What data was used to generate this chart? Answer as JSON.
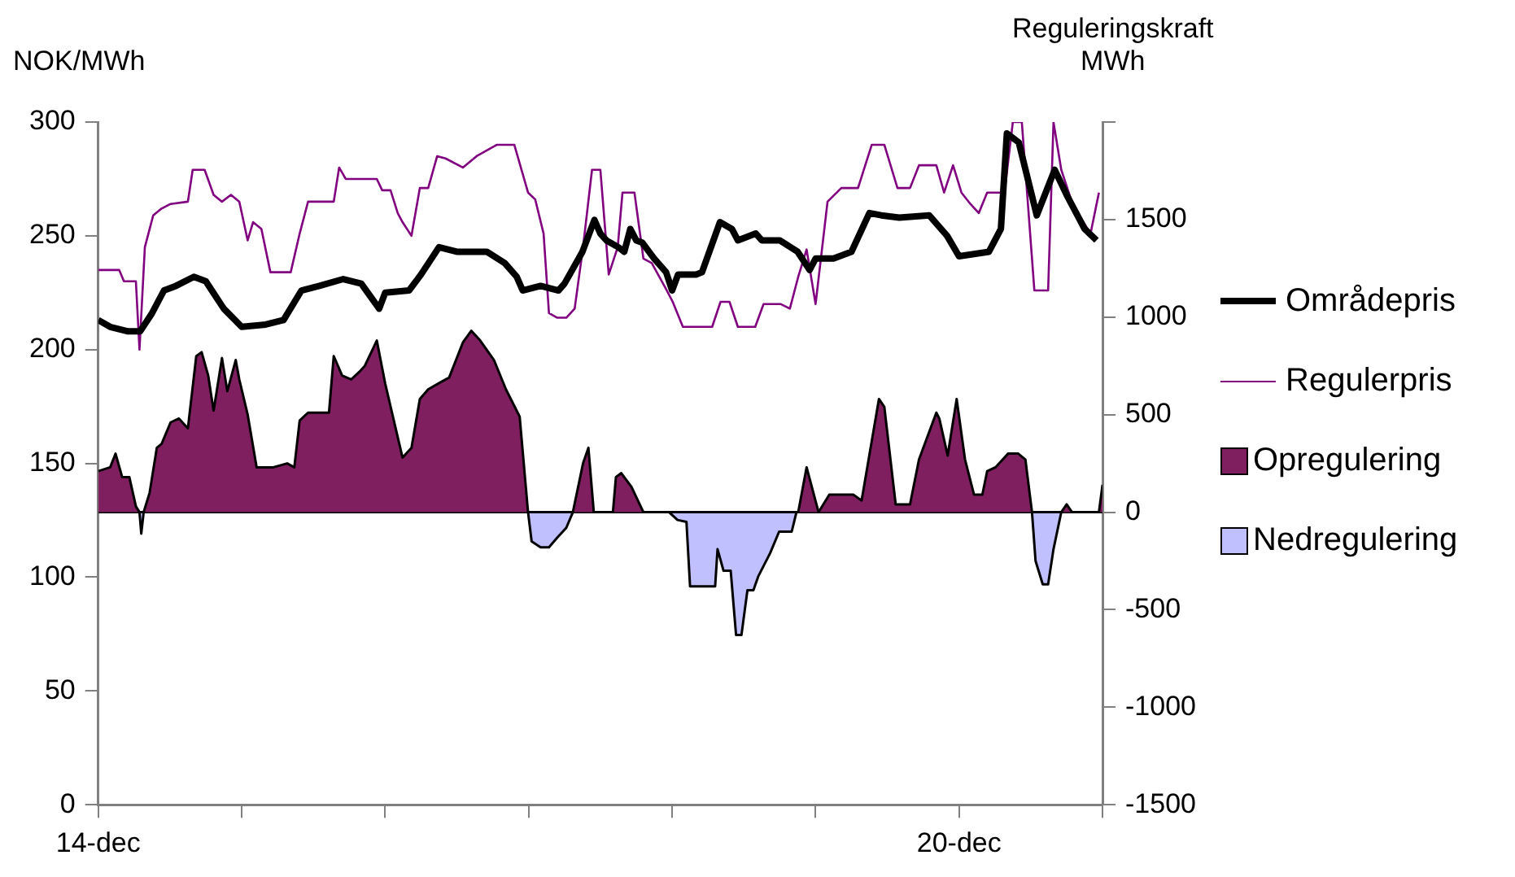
{
  "chart_data": {
    "type": "line",
    "ylabel": "NOK/MWh",
    "y2label": "Reguleringskraft\nMWh",
    "xlim": [
      "--12-14",
      "--12-21"
    ],
    "xticks": [
      {
        "value": "--12-14",
        "label": "14-dec"
      },
      {
        "value": "--12-15",
        "label": null
      },
      {
        "value": "--12-16",
        "label": null
      },
      {
        "value": "--12-17",
        "label": null
      },
      {
        "value": "--12-18",
        "label": null
      },
      {
        "value": "--12-19",
        "label": null
      },
      {
        "value": "--12-20",
        "label": "20-dec"
      },
      {
        "value": "--12-21",
        "label": null
      }
    ],
    "ylim": [
      0,
      300
    ],
    "yticks": [
      0,
      50,
      100,
      150,
      200,
      250,
      300
    ],
    "y2lim": [
      -1500,
      2000
    ],
    "y2ticks": [
      -1500,
      -1000,
      -500,
      0,
      500,
      1000,
      1500,
      {
        "value": 2000,
        "label": null
      }
    ],
    "legend": "right",
    "marker": "none",
    "line_style": "solid",
    "series": [
      {
        "name": "Områdepris",
        "type": "line",
        "axis": "y",
        "color": "#000000",
        "x": [
          "--12-14T00:00",
          "--12-14T02:00",
          "--12-14T05:00",
          "--12-14T07:00",
          "--12-14T09:00",
          "--12-14T11:00",
          "--12-14T13:00",
          "--12-14T16:00",
          "--12-14T18:00",
          "--12-14T21:00",
          "--12-15T00:00",
          "--12-15T04:00",
          "--12-15T07:00",
          "--12-15T10:00",
          "--12-15T13:00",
          "--12-15T17:00",
          "--12-15T20:00",
          "--12-15T23:00",
          "--12-16T00:00",
          "--12-16T04:00",
          "--12-16T06:00",
          "--12-16T09:00",
          "--12-16T12:00",
          "--12-16T14:00",
          "--12-16T17:00",
          "--12-16T20:00",
          "--12-16T22:00",
          "--12-16T23:00",
          "--12-17T02:00",
          "--12-17T05:00",
          "--12-17T06:00",
          "--12-17T09:00",
          "--12-17T11:00",
          "--12-17T12:00",
          "--12-17T13:00",
          "--12-17T15:00",
          "--12-17T16:00",
          "--12-17T17:00",
          "--12-17T18:00",
          "--12-17T19:00",
          "--12-17T21:00",
          "--12-17T23:00",
          "--12-18T00:00",
          "--12-18T01:00",
          "--12-18T04:00",
          "--12-18T05:00",
          "--12-18T08:00",
          "--12-18T10:00",
          "--12-18T11:00",
          "--12-18T14:00",
          "--12-18T15:00",
          "--12-18T18:00",
          "--12-18T21:00",
          "--12-18T23:00",
          "--12-19T00:00",
          "--12-19T03:00",
          "--12-19T06:00",
          "--12-19T09:00",
          "--12-19T11:00",
          "--12-19T14:00",
          "--12-19T19:00",
          "--12-19T22:00",
          "--12-20T00:00",
          "--12-20T05:00",
          "--12-20T07:00",
          "--12-20T08:00",
          "--12-20T10:00",
          "--12-20T13:00",
          "--12-20T16:00",
          "--12-20T18:00",
          "--12-20T21:00",
          "--12-20T23:00"
        ],
        "values": [
          213,
          210,
          208,
          208,
          216,
          226,
          228,
          232,
          230,
          218,
          210,
          211,
          213,
          226,
          228,
          231,
          229,
          218,
          225,
          226,
          233,
          245,
          243,
          243,
          243,
          238,
          232,
          226,
          228,
          226,
          229,
          243,
          257,
          251,
          248,
          245,
          243,
          253,
          248,
          247,
          240,
          234,
          226,
          233,
          233,
          234,
          256,
          253,
          248,
          251,
          248,
          248,
          243,
          235,
          240,
          240,
          243,
          260,
          259,
          258,
          259,
          250,
          241,
          243,
          253,
          295,
          291,
          259,
          279,
          268,
          253,
          248
        ]
      },
      {
        "name": "Regulerpris",
        "type": "line",
        "axis": "y",
        "color": "#800080",
        "x": [
          "--12-14T00:00",
          "--12-14T03:30",
          "--12-14T04:18",
          "--12-14T06:18",
          "--12-14T06:54",
          "--12-14T07:48",
          "--12-14T09:12",
          "--12-14T10:36",
          "--12-14T12:06",
          "--12-14T15:00",
          "--12-14T15:48",
          "--12-14T17:48",
          "--12-14T19:18",
          "--12-14T20:42",
          "--12-14T22:12",
          "--12-14T23:36",
          "--12-15T01:00",
          "--12-15T01:54",
          "--12-15T03:18",
          "--12-15T04:48",
          "--12-15T08:12",
          "--12-15T09:42",
          "--12-15T11:06",
          "--12-15T15:24",
          "--12-15T16:18",
          "--12-15T17:24",
          "--12-15T22:36",
          "--12-15T23:30",
          "--12-16T00:54",
          "--12-16T02:06",
          "--12-16T02:54",
          "--12-16T04:24",
          "--12-16T05:48",
          "--12-16T07:12",
          "--12-16T08:42",
          "--12-16T10:06",
          "--12-16T13:00",
          "--12-16T15:18",
          "--12-16T18:42",
          "--12-16T21:36",
          "--12-16T23:54",
          "--12-17T01:06",
          "--12-17T02:30",
          "--12-17T03:24",
          "--12-17T04:48",
          "--12-17T06:18",
          "--12-17T07:42",
          "--12-17T09:06",
          "--12-17T10:36",
          "--12-17T12:00",
          "--12-17T13:24",
          "--12-17T14:54",
          "--12-17T15:42",
          "--12-17T17:42",
          "--12-17T19:12",
          "--12-17T20:36",
          "--12-17T22:54",
          "--12-18T00:06",
          "--12-18T01:48",
          "--12-18T06:42",
          "--12-18T08:06",
          "--12-18T09:36",
          "--12-18T11:00",
          "--12-18T13:54",
          "--12-18T15:18",
          "--12-18T18:12",
          "--12-18T19:42",
          "--12-18T21:06",
          "--12-18T22:30",
          "--12-19T00:00",
          "--12-19T02:00",
          "--12-19T04:18",
          "--12-19T07:06",
          "--12-19T09:24",
          "--12-19T11:30",
          "--12-19T13:42",
          "--12-19T15:48",
          "--12-19T17:18",
          "--12-19T20:12",
          "--12-19T21:30",
          "--12-19T23:00",
          "--12-20T00:24",
          "--12-20T01:54",
          "--12-20T03:18",
          "--12-20T04:42",
          "--12-20T07:36",
          "--12-20T09:00",
          "--12-20T10:30",
          "--12-20T12:36",
          "--12-20T14:54",
          "--12-20T15:48",
          "--12-20T17:06",
          "--12-20T19:06",
          "--12-20T22:00",
          "--12-20T23:24"
        ],
        "values": [
          235,
          235,
          230,
          230,
          200,
          245,
          259,
          262,
          264,
          265,
          279,
          279,
          268,
          265,
          268,
          265,
          248,
          256,
          253,
          234,
          234,
          251,
          265,
          265,
          280,
          275,
          275,
          270,
          270,
          260,
          256,
          250,
          271,
          271,
          285,
          284,
          280,
          285,
          290,
          290,
          269,
          266,
          251,
          216,
          214,
          214,
          218,
          245,
          279,
          279,
          233,
          245,
          269,
          269,
          240,
          238,
          227,
          221,
          210,
          210,
          221,
          221,
          210,
          210,
          220,
          220,
          218,
          232,
          244,
          220,
          265,
          271,
          271,
          290,
          290,
          271,
          271,
          281,
          281,
          269,
          281,
          269,
          264,
          260,
          269,
          269,
          300,
          300,
          226,
          226,
          300,
          279,
          263,
          251,
          269
        ]
      },
      {
        "name": "Opregulering",
        "type": "area",
        "axis": "y2",
        "color": "#7f1f5f",
        "x": [
          "--12-14T00:00",
          "--12-14T02:00",
          "--12-14T02:54",
          "--12-14T04:00",
          "--12-14T05:12",
          "--12-14T06:18",
          "--12-14T06:54",
          "--12-14T07:36",
          "--12-14T08:36",
          "--12-14T09:48",
          "--12-14T10:36",
          "--12-14T12:06",
          "--12-14T13:30",
          "--12-14T15:00",
          "--12-14T16:24",
          "--12-14T17:18",
          "--12-14T18:24",
          "--12-14T19:18",
          "--12-14T20:42",
          "--12-14T21:36",
          "--12-14T23:00",
          "--12-14T23:36",
          "--12-15T01:00",
          "--12-15T02:30",
          "--12-15T05:18",
          "--12-15T07:36",
          "--12-15T08:48",
          "--12-15T09:42",
          "--12-15T11:06",
          "--12-15T14:36",
          "--12-15T15:24",
          "--12-15T16:48",
          "--12-15T18:18",
          "--12-15T19:42",
          "--12-15T20:36",
          "--12-15T22:36",
          "--12-16T00:00",
          "--12-16T02:54",
          "--12-16T04:24",
          "--12-16T05:48",
          "--12-16T07:12",
          "--12-16T09:30",
          "--12-16T10:42",
          "--12-16T13:00",
          "--12-16T14:24",
          "--12-16T15:54",
          "--12-16T18:12",
          "--12-16T20:12",
          "--12-16T22:30",
          "--12-16T23:54",
          "--12-17T07:24",
          "--12-17T09:06",
          "--12-17T10:00",
          "--12-17T10:54",
          "--12-17T14:06",
          "--12-17T14:36",
          "--12-17T15:30",
          "--12-17T17:12",
          "--12-17T19:12",
          "--12-18T21:06",
          "--12-18T22:30",
          "--12-19T00:30",
          "--12-19T02:18",
          "--12-19T06:18",
          "--12-19T07:42",
          "--12-19T10:36",
          "--12-19T11:30",
          "--12-19T13:24",
          "--12-19T15:48",
          "--12-19T17:18",
          "--12-19T20:12",
          "--12-19T20:42",
          "--12-19T22:06",
          "--12-19T23:36",
          "--12-20T01:00",
          "--12-20T02:30",
          "--12-20T03:54",
          "--12-20T04:42",
          "--12-20T06:06",
          "--12-20T08:12",
          "--12-20T09:54",
          "--12-20T11:06",
          "--12-20T12:12",
          "--12-20T17:06",
          "--12-20T18:00",
          "--12-20T18:54",
          "--12-20T23:24",
          "--12-21T00:00"
        ],
        "values": [
          210,
          230,
          300,
          180,
          180,
          30,
          0,
          0,
          100,
          330,
          350,
          460,
          480,
          430,
          800,
          820,
          700,
          520,
          790,
          620,
          780,
          680,
          500,
          230,
          230,
          250,
          230,
          470,
          510,
          510,
          800,
          700,
          680,
          720,
          750,
          880,
          660,
          280,
          330,
          580,
          630,
          670,
          690,
          870,
          930,
          880,
          780,
          630,
          490,
          0,
          0,
          250,
          330,
          0,
          0,
          180,
          200,
          130,
          0,
          0,
          230,
          0,
          90,
          90,
          60,
          580,
          540,
          40,
          40,
          270,
          510,
          480,
          290,
          580,
          270,
          90,
          90,
          210,
          230,
          300,
          300,
          270,
          0,
          0,
          40,
          0,
          0,
          140
        ]
      },
      {
        "name": "Nedregulering",
        "type": "area",
        "axis": "y2",
        "color": "#c0c0ff",
        "x": [
          "--12-14T00:00",
          "--12-14T06:54",
          "--12-14T07:12",
          "--12-14T07:36",
          "--12-16T23:54",
          "--12-17T00:30",
          "--12-17T02:00",
          "--12-17T03:24",
          "--12-17T04:48",
          "--12-17T06:18",
          "--12-17T07:24",
          "--12-17T23:30",
          "--12-18T00:54",
          "--12-18T02:24",
          "--12-18T03:00",
          "--12-18T07:12",
          "--12-18T07:36",
          "--12-18T08:36",
          "--12-18T09:48",
          "--12-18T10:42",
          "--12-18T11:36",
          "--12-18T12:36",
          "--12-18T13:36",
          "--12-18T14:24",
          "--12-18T16:24",
          "--12-18T17:54",
          "--12-18T20:00",
          "--12-18T20:48",
          "--12-20T12:12",
          "--12-20T12:48",
          "--12-20T14:00",
          "--12-20T14:54",
          "--12-20T15:48",
          "--12-20T17:06",
          "--12-21T00:00"
        ],
        "values": [
          0,
          0,
          -110,
          0,
          0,
          -150,
          -180,
          -180,
          -130,
          -80,
          0,
          0,
          -40,
          -50,
          -380,
          -380,
          -190,
          -300,
          -300,
          -630,
          -630,
          -400,
          -400,
          -330,
          -210,
          -100,
          -100,
          0,
          0,
          -250,
          -370,
          -370,
          -190,
          0,
          0
        ]
      }
    ]
  }
}
